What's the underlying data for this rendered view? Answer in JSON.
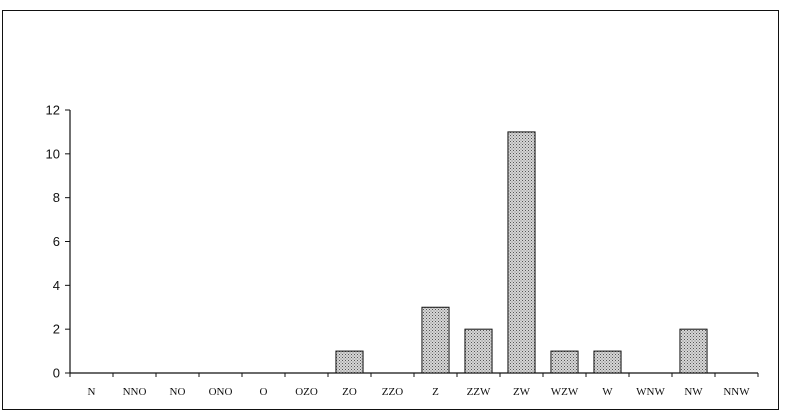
{
  "chart_data": {
    "type": "bar",
    "title": "",
    "xlabel": "",
    "ylabel": "",
    "categories": [
      "N",
      "NNO",
      "NO",
      "ONO",
      "O",
      "OZO",
      "ZO",
      "ZZO",
      "Z",
      "ZZW",
      "ZW",
      "WZW",
      "W",
      "WNW",
      "NW",
      "NNW"
    ],
    "values": [
      0,
      0,
      0,
      0,
      0,
      0,
      1,
      0,
      3,
      2,
      11,
      1,
      1,
      0,
      2,
      0
    ],
    "ylim": [
      0,
      12
    ],
    "yticks": [
      0,
      2,
      4,
      6,
      8,
      10,
      12
    ],
    "grid": false,
    "legend": "none",
    "bar_fill": "#b8b8b8",
    "bar_stroke": "#111111"
  }
}
